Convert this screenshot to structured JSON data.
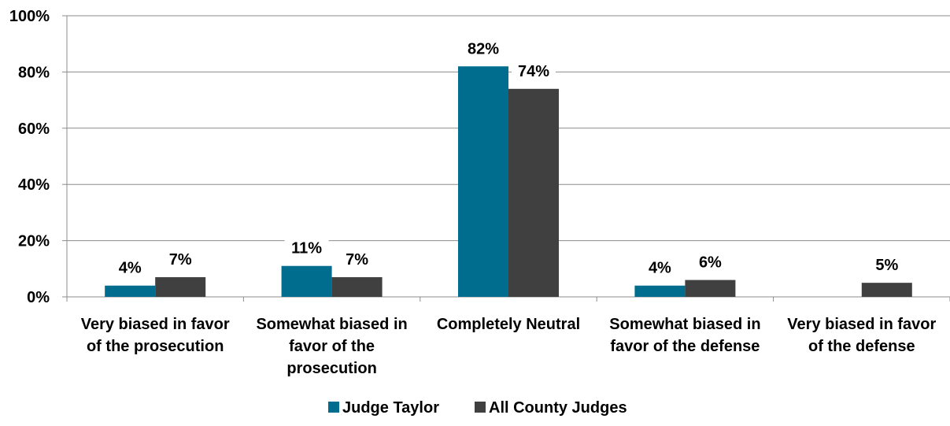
{
  "chart_data": {
    "type": "bar",
    "categories": [
      [
        "Very biased in favor",
        "of the prosecution"
      ],
      [
        "Somewhat biased in",
        "favor of the",
        "prosecution"
      ],
      [
        "Completely Neutral"
      ],
      [
        "Somewhat biased in",
        "favor of the defense"
      ],
      [
        "Very biased in favor",
        "of the defense"
      ]
    ],
    "series": [
      {
        "name": "Judge Taylor",
        "color": "#006D8F",
        "values": [
          4,
          11,
          82,
          4,
          null
        ],
        "labels": [
          "4%",
          "11%",
          "82%",
          "4%",
          ""
        ]
      },
      {
        "name": "All County Judges",
        "color": "#404040",
        "values": [
          7,
          7,
          74,
          6,
          5
        ],
        "labels": [
          "7%",
          "7%",
          "74%",
          "6%",
          "5%"
        ]
      }
    ],
    "yticks": [
      0,
      20,
      40,
      60,
      80,
      100
    ],
    "ytick_labels": [
      "0%",
      "20%",
      "40%",
      "60%",
      "80%",
      "100%"
    ],
    "ylim": [
      0,
      100
    ],
    "grid": true,
    "legend_position": "bottom-center",
    "title": "",
    "xlabel": "",
    "ylabel": ""
  }
}
